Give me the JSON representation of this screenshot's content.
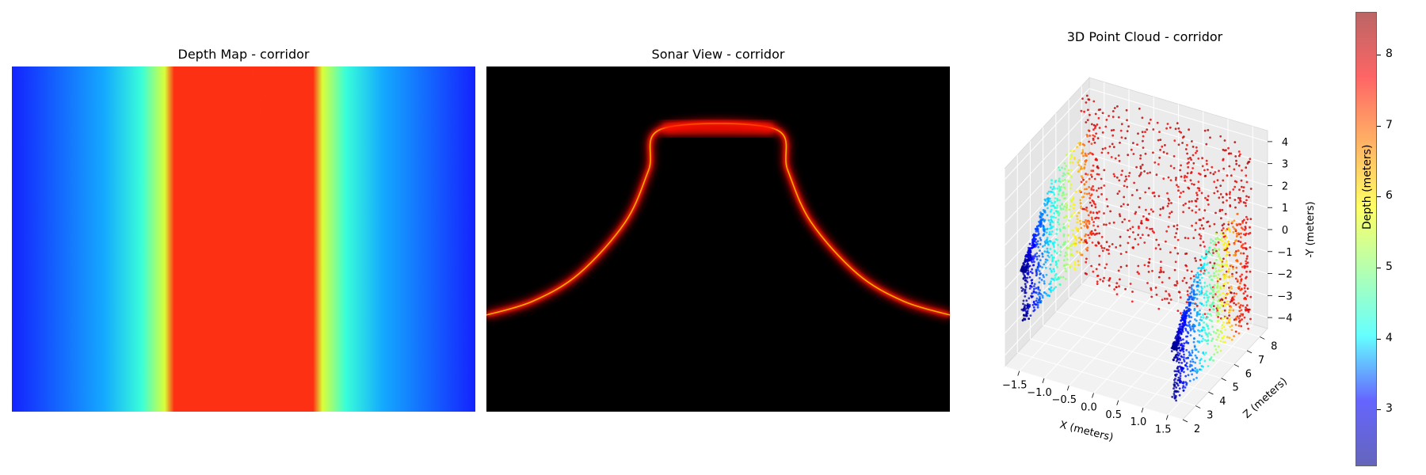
{
  "chart_data": [
    {
      "type": "heatmap",
      "title": "Depth Map - corridor",
      "colormap": "jet",
      "colormap_stops": [
        "#0000c8",
        "#0066ff",
        "#00e0ff",
        "#80ff80",
        "#ffff00",
        "#ff8000",
        "#ff3000"
      ],
      "profile_note": "columns vary horizontally: blue at edges, cyan/yellow transition, orange-red center band",
      "columns": [
        0.0,
        0.1,
        0.2,
        0.28,
        0.33,
        0.35,
        0.65,
        0.67,
        0.72,
        0.8,
        0.9,
        1.0
      ],
      "depth_values": [
        2.9,
        3.4,
        3.9,
        4.8,
        6.0,
        7.8,
        7.8,
        6.0,
        4.8,
        3.9,
        3.4,
        2.9
      ]
    },
    {
      "type": "heatmap",
      "title": "Sonar View - corridor",
      "background": "#000000",
      "curve_color": "#ff2000",
      "curve_x": [
        0.0,
        0.1,
        0.2,
        0.3,
        0.35,
        0.38,
        0.62,
        0.65,
        0.7,
        0.8,
        0.9,
        1.0
      ],
      "curve_y": [
        0.72,
        0.68,
        0.6,
        0.45,
        0.3,
        0.18,
        0.18,
        0.3,
        0.45,
        0.6,
        0.68,
        0.72
      ]
    },
    {
      "type": "scatter",
      "title": "3D Point Cloud - corridor",
      "xlabel": "X (meters)",
      "ylabel": "Z (meters)",
      "zlabel": "-Y (meters)",
      "x_ticks": [
        "−1.5",
        "−1.0",
        "−0.5",
        "0.0",
        "0.5",
        "1.0",
        "1.5"
      ],
      "z_ticks": [
        "2",
        "3",
        "4",
        "5",
        "6",
        "7",
        "8"
      ],
      "y_ticks": [
        "4",
        "3",
        "2",
        "1",
        "0",
        "−1",
        "−2",
        "−3",
        "−4"
      ],
      "xlim": [
        -1.8,
        1.8
      ],
      "zlim": [
        2,
        8.6
      ],
      "ylim": [
        -4.5,
        4.5
      ],
      "grid": true,
      "colorbar": {
        "label": "Depth (meters)",
        "ticks": [
          "8",
          "7",
          "6",
          "5",
          "4",
          "3"
        ],
        "tick_values": [
          8,
          7,
          6,
          5,
          4,
          3
        ],
        "range": [
          2.2,
          8.6
        ],
        "colormap_stops": [
          "#00008f",
          "#0000ff",
          "#00ffff",
          "#80ff80",
          "#ffff00",
          "#ff8000",
          "#ff0000",
          "#8f0000"
        ]
      }
    }
  ]
}
